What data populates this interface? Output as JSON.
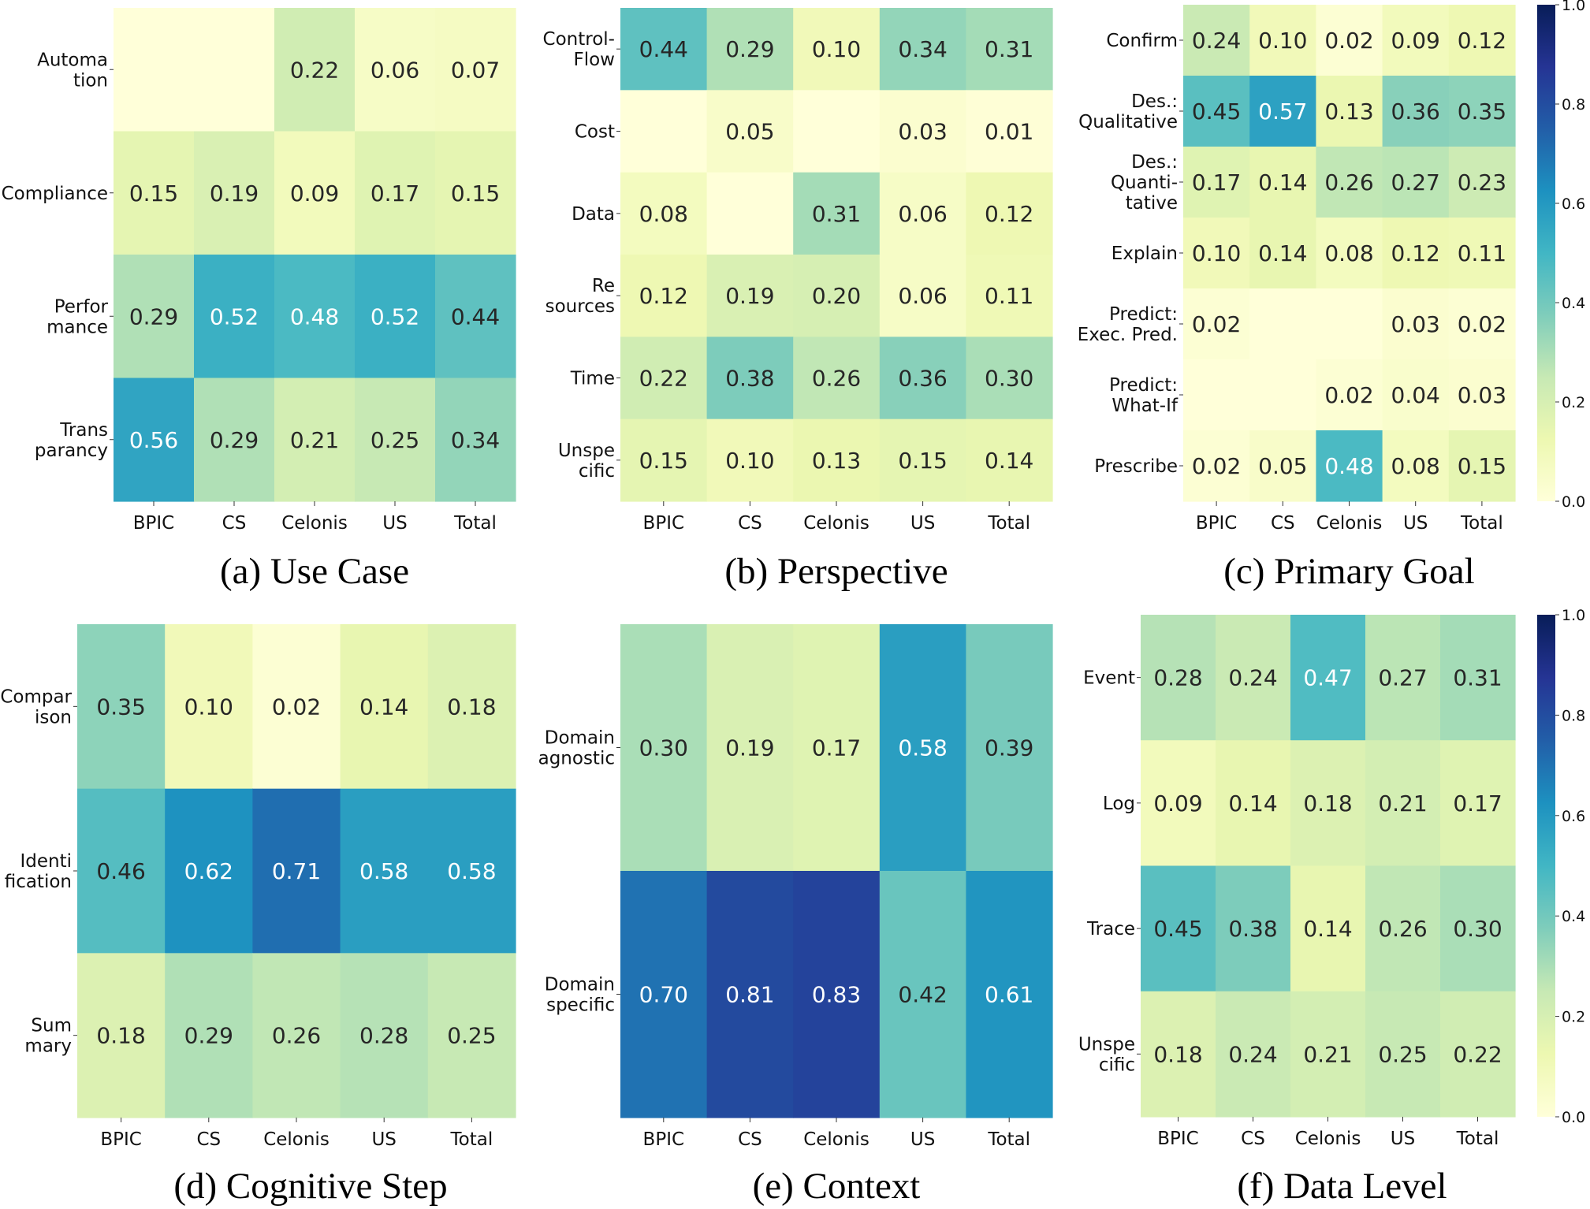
{
  "chart_data": [
    {
      "type": "heatmap",
      "title": "(a) Use Case",
      "xlabel": "",
      "ylabel": "",
      "x_categories": [
        "BPIC",
        "CS",
        "Celonis",
        "US",
        "Total"
      ],
      "y_categories": [
        "Automa\ntion",
        "Compliance",
        "Perfor\nmance",
        "Trans\nparancy"
      ],
      "values": [
        [
          null,
          null,
          0.22,
          0.06,
          0.07
        ],
        [
          0.15,
          0.19,
          0.09,
          0.17,
          0.15
        ],
        [
          0.29,
          0.52,
          0.48,
          0.52,
          0.44
        ],
        [
          0.56,
          0.29,
          0.21,
          0.25,
          0.34
        ]
      ]
    },
    {
      "type": "heatmap",
      "title": "(b) Perspective",
      "xlabel": "",
      "ylabel": "",
      "x_categories": [
        "BPIC",
        "CS",
        "Celonis",
        "US",
        "Total"
      ],
      "y_categories": [
        "Control-\nFlow",
        "Cost",
        "Data",
        "Re\nsources",
        "Time",
        "Unspe\ncific"
      ],
      "values": [
        [
          0.44,
          0.29,
          0.1,
          0.34,
          0.31
        ],
        [
          null,
          0.05,
          null,
          0.03,
          0.01
        ],
        [
          0.08,
          null,
          0.31,
          0.06,
          0.12
        ],
        [
          0.12,
          0.19,
          0.2,
          0.06,
          0.11
        ],
        [
          0.22,
          0.38,
          0.26,
          0.36,
          0.3
        ],
        [
          0.15,
          0.1,
          0.13,
          0.15,
          0.14
        ]
      ]
    },
    {
      "type": "heatmap",
      "title": "(c) Primary Goal",
      "xlabel": "",
      "ylabel": "",
      "x_categories": [
        "BPIC",
        "CS",
        "Celonis",
        "US",
        "Total"
      ],
      "y_categories": [
        "Confirm",
        "Des.:\nQualitative",
        "Des.:\nQuanti-\ntative",
        "Explain",
        "Predict:\nExec. Pred.",
        "Predict:\nWhat-If",
        "Prescribe"
      ],
      "values": [
        [
          0.24,
          0.1,
          0.02,
          0.09,
          0.12
        ],
        [
          0.45,
          0.57,
          0.13,
          0.36,
          0.35
        ],
        [
          0.17,
          0.14,
          0.26,
          0.27,
          0.23
        ],
        [
          0.1,
          0.14,
          0.08,
          0.12,
          0.11
        ],
        [
          0.02,
          null,
          null,
          0.03,
          0.02
        ],
        [
          null,
          null,
          0.02,
          0.04,
          0.03
        ],
        [
          0.02,
          0.05,
          0.48,
          0.08,
          0.15
        ]
      ],
      "colorbar": {
        "range": [
          0.0,
          1.0
        ],
        "ticks": [
          "0.0",
          "0.2",
          "0.4",
          "0.6",
          "0.8",
          "1.0"
        ],
        "colormap": "YlGnBu"
      }
    },
    {
      "type": "heatmap",
      "title": "(d) Cognitive Step",
      "xlabel": "",
      "ylabel": "",
      "x_categories": [
        "BPIC",
        "CS",
        "Celonis",
        "US",
        "Total"
      ],
      "y_categories": [
        "Compar\nison",
        "Identi\nfication",
        "Sum\nmary"
      ],
      "values": [
        [
          0.35,
          0.1,
          0.02,
          0.14,
          0.18
        ],
        [
          0.46,
          0.62,
          0.71,
          0.58,
          0.58
        ],
        [
          0.18,
          0.29,
          0.26,
          0.28,
          0.25
        ]
      ]
    },
    {
      "type": "heatmap",
      "title": "(e) Context",
      "xlabel": "",
      "ylabel": "",
      "x_categories": [
        "BPIC",
        "CS",
        "Celonis",
        "US",
        "Total"
      ],
      "y_categories": [
        "Domain\nagnostic",
        "Domain\nspecific"
      ],
      "values": [
        [
          0.3,
          0.19,
          0.17,
          0.58,
          0.39
        ],
        [
          0.7,
          0.81,
          0.83,
          0.42,
          0.61
        ]
      ]
    },
    {
      "type": "heatmap",
      "title": "(f) Data Level",
      "xlabel": "",
      "ylabel": "",
      "x_categories": [
        "BPIC",
        "CS",
        "Celonis",
        "US",
        "Total"
      ],
      "y_categories": [
        "Event",
        "Log",
        "Trace",
        "Unspe\ncific"
      ],
      "values": [
        [
          0.28,
          0.24,
          0.47,
          0.27,
          0.31
        ],
        [
          0.09,
          0.14,
          0.18,
          0.21,
          0.17
        ],
        [
          0.45,
          0.38,
          0.14,
          0.26,
          0.3
        ],
        [
          0.18,
          0.24,
          0.21,
          0.25,
          0.22
        ]
      ],
      "colorbar": {
        "range": [
          0.0,
          1.0
        ],
        "ticks": [
          "0.0",
          "0.2",
          "0.4",
          "0.6",
          "0.8",
          "1.0"
        ],
        "colormap": "YlGnBu"
      }
    }
  ],
  "colormap_stops": [
    "#ffffd9",
    "#edf8b1",
    "#c7e9b4",
    "#7fcdbb",
    "#41b6c4",
    "#1d91c0",
    "#225ea8",
    "#253494",
    "#081d58"
  ],
  "text_colors": {
    "dark": "#262626",
    "light": "#ffffff"
  }
}
